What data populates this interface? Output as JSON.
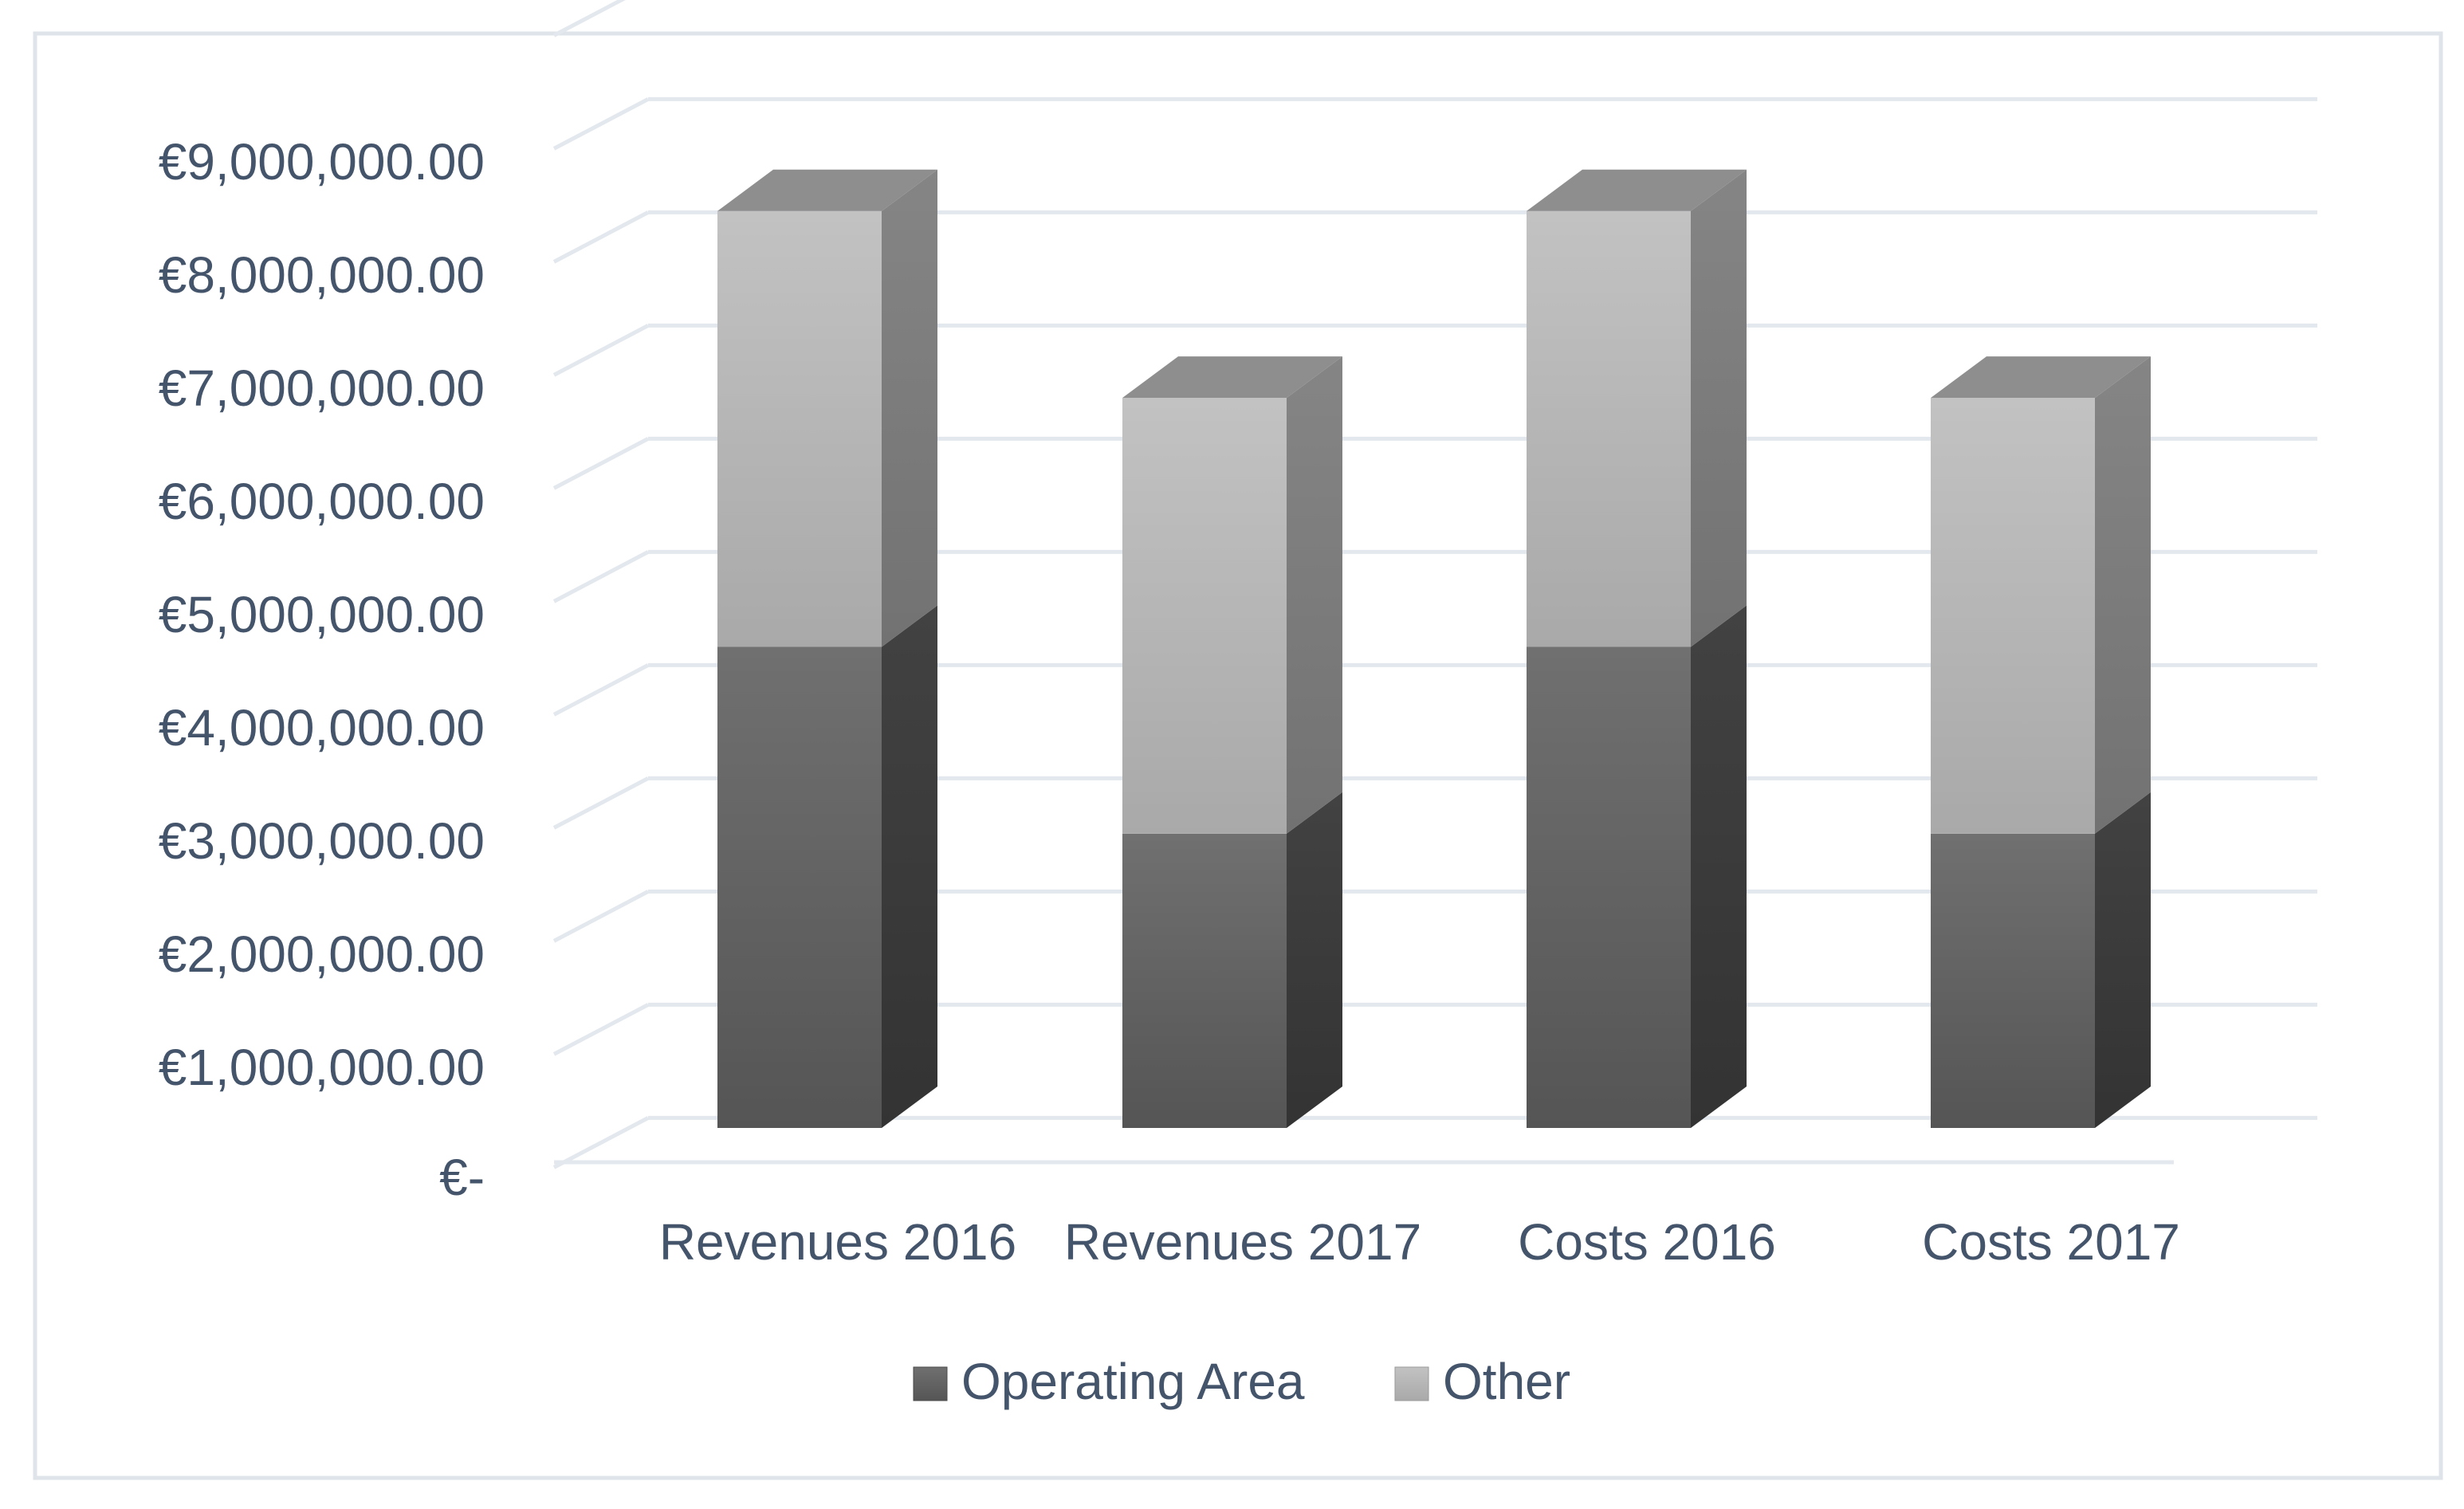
{
  "chart_data": {
    "type": "bar",
    "stacked": true,
    "style": "3d-stacked-column",
    "title": "",
    "xlabel": "",
    "ylabel": "",
    "categories": [
      "Revenues 2016",
      "Revenues 2017",
      "Costs 2016",
      "Costs 2017"
    ],
    "series": [
      {
        "name": "Operating Area",
        "values": [
          4250000,
          2600000,
          4250000,
          2600000
        ]
      },
      {
        "name": "Other",
        "values": [
          3850000,
          3850000,
          3850000,
          3850000
        ]
      }
    ],
    "ylim": [
      0,
      9000000
    ],
    "yticks": [
      0,
      1000000,
      2000000,
      3000000,
      4000000,
      5000000,
      6000000,
      7000000,
      8000000,
      9000000
    ],
    "ytick_labels": [
      "€-",
      "€1,000,000.00",
      "€2,000,000.00",
      "€3,000,000.00",
      "€4,000,000.00",
      "€5,000,000.00",
      "€6,000,000.00",
      "€7,000,000.00",
      "€8,000,000.00",
      "€9,000,000.00"
    ],
    "grid": true,
    "legend_position": "bottom-center",
    "colors": {
      "operating_front_top": "#707070",
      "operating_front_bottom": "#555555",
      "operating_side": "#383838",
      "other_front_top": "#c2c2c2",
      "other_front_bottom": "#a9a9a9",
      "other_side": "#7c7c7c",
      "top_face": "#8e8e8e",
      "grid": "#e3e8ee",
      "axis_text": "#44546a",
      "frame": "#dfe4ea"
    }
  },
  "legend": {
    "items": [
      {
        "label": "Operating Area",
        "key": "operating"
      },
      {
        "label": "Other",
        "key": "other"
      }
    ]
  }
}
